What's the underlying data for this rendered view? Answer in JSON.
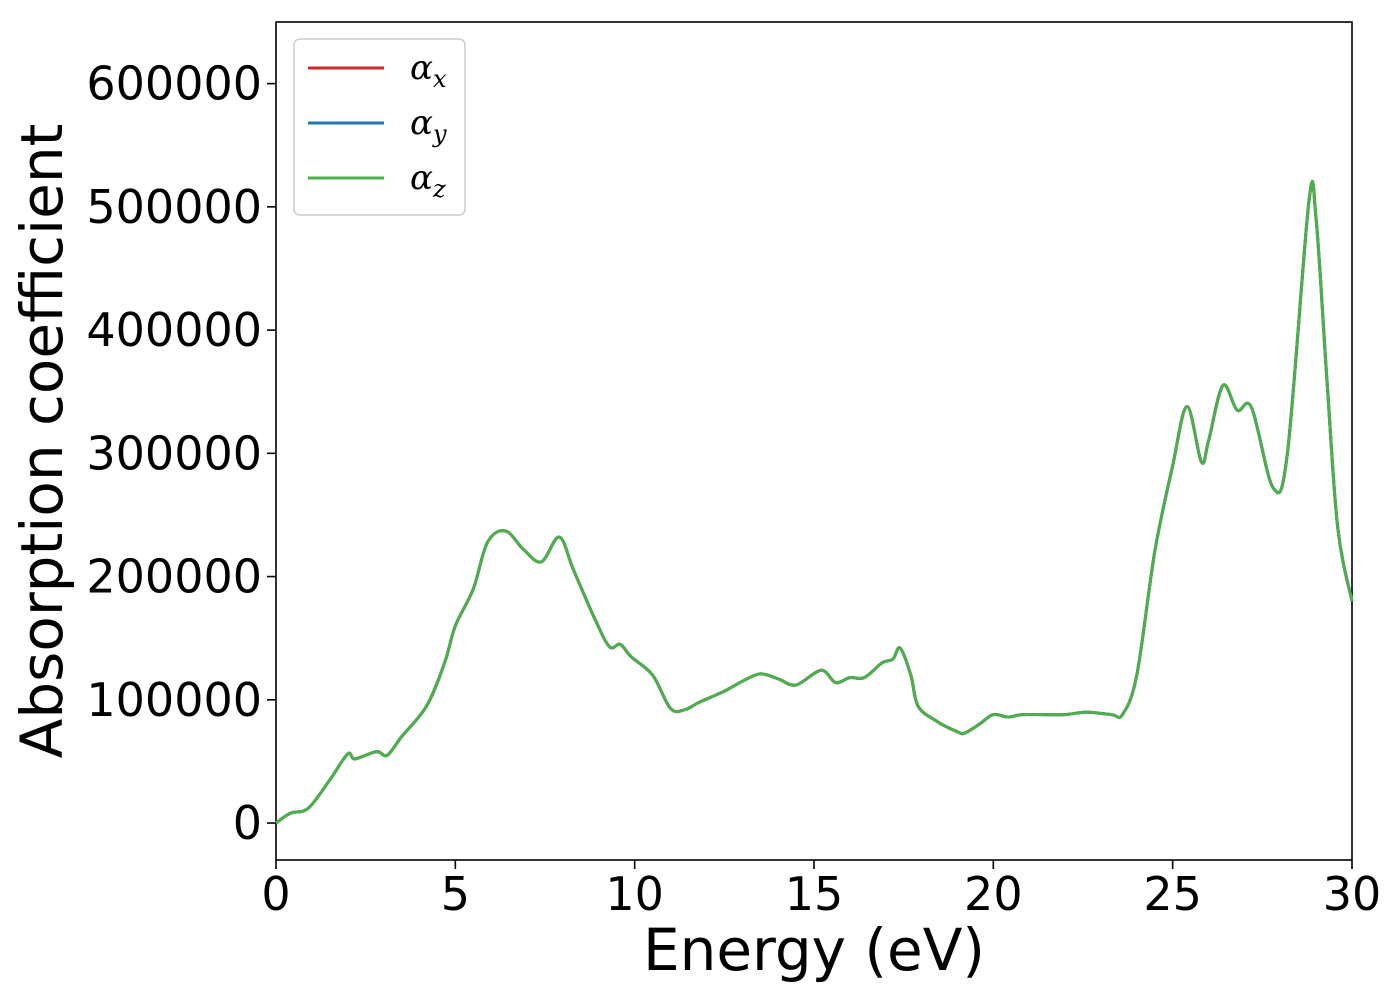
{
  "chart_data": {
    "type": "line",
    "xlabel": "Energy (eV)",
    "ylabel": "Absorption coefficient",
    "xlim": [
      0,
      30
    ],
    "ylim": [
      -30000,
      650000
    ],
    "xticks": [
      0,
      5,
      10,
      15,
      20,
      25,
      30
    ],
    "yticks": [
      0,
      100000,
      200000,
      300000,
      400000,
      500000,
      600000
    ],
    "grid": false,
    "legend_position": "top-left",
    "series": [
      {
        "name": "α",
        "subscript": "x",
        "color": "#d62728"
      },
      {
        "name": "α",
        "subscript": "y",
        "color": "#1f77b4"
      },
      {
        "name": "α",
        "subscript": "z",
        "color": "#4daf4a"
      }
    ],
    "x": [
      0,
      0.4,
      0.9,
      1.5,
      2.0,
      2.2,
      2.8,
      3.1,
      3.5,
      4.2,
      4.7,
      5.0,
      5.5,
      5.9,
      6.4,
      6.9,
      7.4,
      7.9,
      8.3,
      8.9,
      9.3,
      9.6,
      9.9,
      10.5,
      11.0,
      11.4,
      11.8,
      12.5,
      13.0,
      13.5,
      14.0,
      14.5,
      15.2,
      15.6,
      16.0,
      16.4,
      16.9,
      17.2,
      17.4,
      17.7,
      17.9,
      18.4,
      19.0,
      19.2,
      19.6,
      20.0,
      20.4,
      20.8,
      21.4,
      22.0,
      22.6,
      23.3,
      23.6,
      24.0,
      24.5,
      25.0,
      25.4,
      25.8,
      26.0,
      26.4,
      26.8,
      27.2,
      27.8,
      28.2,
      28.8,
      29.0,
      29.3,
      29.6,
      30
    ]
  },
  "values": [
    0,
    8000,
    12000,
    35000,
    56000,
    52000,
    58000,
    55000,
    70000,
    95000,
    130000,
    160000,
    190000,
    228000,
    237000,
    222000,
    212000,
    232000,
    205000,
    165000,
    143000,
    145000,
    135000,
    120000,
    93000,
    92000,
    98000,
    107000,
    115000,
    121000,
    117000,
    112000,
    124000,
    114000,
    118000,
    118000,
    130000,
    133000,
    142000,
    120000,
    95000,
    83000,
    74000,
    73000,
    80000,
    88000,
    86000,
    88000,
    88000,
    88000,
    90000,
    88000,
    88000,
    120000,
    220000,
    290000,
    338000,
    293000,
    310000,
    355000,
    335000,
    337000,
    272000,
    300000,
    505000,
    490000,
    360000,
    240000,
    180000
  ]
}
